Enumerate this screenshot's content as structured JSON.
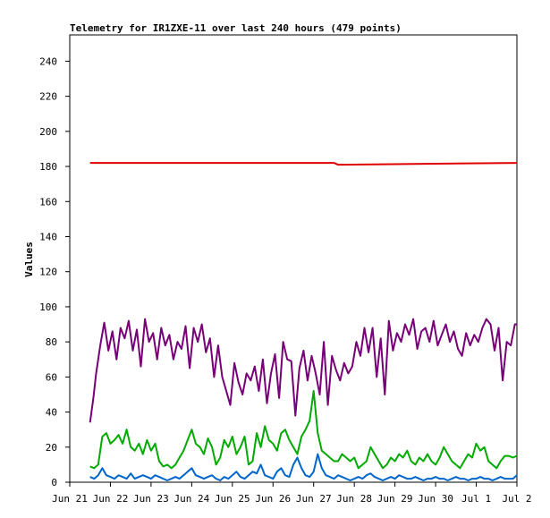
{
  "chart_data": {
    "type": "line",
    "title": "Telemetry for IR1ZXE-11 over last 240 hours (479 points)",
    "xlabel": "",
    "ylabel": "Values",
    "xlim": [
      "Jun 21",
      "Jul 2"
    ],
    "ylim": [
      0,
      255
    ],
    "x_ticks": [
      "Jun 21",
      "Jun 22",
      "Jun 23",
      "Jun 24",
      "Jun 25",
      "Jun 26",
      "Jun 27",
      "Jun 28",
      "Jun 29",
      "Jun 30",
      "Jul 1",
      "Jul 2"
    ],
    "y_ticks": [
      0,
      20,
      40,
      60,
      80,
      100,
      120,
      140,
      160,
      180,
      200,
      220,
      240
    ],
    "grid": false,
    "legend": "none",
    "colors": {
      "red": "#e00000",
      "purple": "#770077",
      "green": "#00aa00",
      "blue": "#0066cc"
    },
    "series": [
      {
        "color": "#e00000",
        "x": [
          0.5,
          6.5,
          6.6,
          11.0
        ],
        "values": [
          182,
          182,
          181,
          182
        ]
      },
      {
        "color": "#770077",
        "x": [
          0.5,
          0.58,
          0.65,
          0.75,
          0.85,
          0.95,
          1.05,
          1.15,
          1.25,
          1.35,
          1.45,
          1.55,
          1.65,
          1.75,
          1.85,
          1.95,
          2.05,
          2.15,
          2.25,
          2.35,
          2.45,
          2.55,
          2.65,
          2.75,
          2.85,
          2.95,
          3.05,
          3.15,
          3.25,
          3.35,
          3.45,
          3.55,
          3.65,
          3.75,
          3.85,
          3.95,
          4.05,
          4.15,
          4.25,
          4.35,
          4.45,
          4.55,
          4.65,
          4.75,
          4.85,
          4.95,
          5.05,
          5.15,
          5.25,
          5.35,
          5.45,
          5.55,
          5.65,
          5.75,
          5.85,
          5.95,
          6.05,
          6.15,
          6.25,
          6.35,
          6.45,
          6.55,
          6.65,
          6.75,
          6.85,
          6.95,
          7.05,
          7.15,
          7.25,
          7.35,
          7.45,
          7.55,
          7.65,
          7.75,
          7.85,
          7.95,
          8.05,
          8.15,
          8.25,
          8.35,
          8.45,
          8.55,
          8.65,
          8.75,
          8.85,
          8.95,
          9.05,
          9.15,
          9.25,
          9.35,
          9.45,
          9.55,
          9.65,
          9.75,
          9.85,
          9.95,
          10.05,
          10.15,
          10.25,
          10.35,
          10.45,
          10.55,
          10.65,
          10.75,
          10.85,
          10.95,
          11.0
        ],
        "values": [
          34,
          48,
          62,
          78,
          91,
          75,
          86,
          70,
          88,
          82,
          92,
          75,
          87,
          66,
          93,
          80,
          85,
          70,
          88,
          78,
          84,
          70,
          80,
          76,
          89,
          65,
          88,
          80,
          90,
          74,
          82,
          60,
          78,
          60,
          52,
          44,
          68,
          57,
          50,
          62,
          58,
          66,
          52,
          70,
          45,
          62,
          73,
          48,
          80,
          70,
          69,
          38,
          65,
          75,
          58,
          72,
          62,
          50,
          80,
          44,
          72,
          64,
          58,
          68,
          62,
          66,
          80,
          72,
          88,
          74,
          88,
          60,
          82,
          50,
          92,
          75,
          85,
          80,
          90,
          84,
          93,
          76,
          86,
          88,
          80,
          92,
          78,
          84,
          90,
          80,
          86,
          76,
          72,
          85,
          78,
          84,
          80,
          88,
          93,
          90,
          75,
          88,
          58,
          80,
          78,
          90,
          90
        ]
      },
      {
        "color": "#00aa00",
        "x": [
          0.5,
          0.6,
          0.7,
          0.8,
          0.9,
          1.0,
          1.1,
          1.2,
          1.3,
          1.4,
          1.5,
          1.6,
          1.7,
          1.8,
          1.9,
          2.0,
          2.1,
          2.2,
          2.3,
          2.4,
          2.5,
          2.6,
          2.7,
          2.8,
          2.9,
          3.0,
          3.1,
          3.2,
          3.3,
          3.4,
          3.5,
          3.6,
          3.7,
          3.8,
          3.9,
          4.0,
          4.1,
          4.2,
          4.3,
          4.4,
          4.5,
          4.6,
          4.7,
          4.8,
          4.9,
          5.0,
          5.1,
          5.2,
          5.3,
          5.4,
          5.5,
          5.6,
          5.7,
          5.8,
          5.9,
          6.0,
          6.1,
          6.2,
          6.3,
          6.4,
          6.5,
          6.6,
          6.7,
          6.8,
          6.9,
          7.0,
          7.1,
          7.2,
          7.3,
          7.4,
          7.5,
          7.6,
          7.7,
          7.8,
          7.9,
          8.0,
          8.1,
          8.2,
          8.3,
          8.4,
          8.5,
          8.6,
          8.7,
          8.8,
          8.9,
          9.0,
          9.1,
          9.2,
          9.3,
          9.4,
          9.5,
          9.6,
          9.7,
          9.8,
          9.9,
          10.0,
          10.1,
          10.2,
          10.3,
          10.4,
          10.5,
          10.6,
          10.7,
          10.8,
          10.9,
          11.0
        ],
        "values": [
          9,
          8,
          10,
          26,
          28,
          22,
          24,
          27,
          22,
          30,
          20,
          18,
          22,
          16,
          24,
          18,
          22,
          12,
          9,
          10,
          8,
          10,
          14,
          18,
          24,
          30,
          22,
          20,
          16,
          25,
          20,
          10,
          14,
          24,
          20,
          26,
          16,
          20,
          26,
          10,
          12,
          28,
          20,
          32,
          24,
          22,
          18,
          28,
          30,
          24,
          20,
          16,
          26,
          30,
          35,
          52,
          28,
          18,
          16,
          14,
          12,
          12,
          16,
          14,
          12,
          14,
          8,
          10,
          12,
          20,
          16,
          12,
          8,
          10,
          14,
          12,
          16,
          14,
          18,
          12,
          10,
          14,
          12,
          16,
          12,
          10,
          14,
          20,
          16,
          12,
          10,
          8,
          12,
          16,
          14,
          22,
          18,
          20,
          12,
          10,
          8,
          12,
          15,
          15,
          14,
          15
        ]
      },
      {
        "color": "#0066cc",
        "x": [
          0.5,
          0.6,
          0.7,
          0.8,
          0.9,
          1.0,
          1.1,
          1.2,
          1.3,
          1.4,
          1.5,
          1.6,
          1.7,
          1.8,
          1.9,
          2.0,
          2.1,
          2.2,
          2.3,
          2.4,
          2.5,
          2.6,
          2.7,
          2.8,
          2.9,
          3.0,
          3.1,
          3.2,
          3.3,
          3.4,
          3.5,
          3.6,
          3.7,
          3.8,
          3.9,
          4.0,
          4.1,
          4.2,
          4.3,
          4.4,
          4.5,
          4.6,
          4.7,
          4.8,
          4.9,
          5.0,
          5.1,
          5.2,
          5.3,
          5.4,
          5.5,
          5.6,
          5.7,
          5.8,
          5.9,
          6.0,
          6.1,
          6.2,
          6.3,
          6.4,
          6.5,
          6.6,
          6.7,
          6.8,
          6.9,
          7.0,
          7.1,
          7.2,
          7.3,
          7.4,
          7.5,
          7.6,
          7.7,
          7.8,
          7.9,
          8.0,
          8.1,
          8.2,
          8.3,
          8.4,
          8.5,
          8.6,
          8.7,
          8.8,
          8.9,
          9.0,
          9.1,
          9.2,
          9.3,
          9.4,
          9.5,
          9.6,
          9.7,
          9.8,
          9.9,
          10.0,
          10.1,
          10.2,
          10.3,
          10.4,
          10.5,
          10.6,
          10.7,
          10.8,
          10.9,
          11.0
        ],
        "values": [
          3,
          2,
          4,
          8,
          4,
          3,
          2,
          4,
          3,
          2,
          5,
          2,
          3,
          4,
          3,
          2,
          4,
          3,
          2,
          1,
          2,
          3,
          2,
          4,
          6,
          8,
          4,
          3,
          2,
          3,
          4,
          2,
          1,
          3,
          2,
          4,
          6,
          3,
          2,
          4,
          6,
          5,
          10,
          4,
          3,
          2,
          6,
          8,
          4,
          3,
          10,
          14,
          8,
          4,
          3,
          6,
          16,
          8,
          4,
          3,
          2,
          4,
          3,
          2,
          1,
          2,
          3,
          2,
          4,
          5,
          3,
          2,
          1,
          2,
          3,
          2,
          4,
          3,
          2,
          2,
          3,
          2,
          1,
          2,
          2,
          3,
          2,
          2,
          1,
          2,
          3,
          2,
          2,
          1,
          2,
          2,
          3,
          2,
          2,
          1,
          2,
          3,
          2,
          2,
          2,
          4
        ]
      }
    ]
  }
}
